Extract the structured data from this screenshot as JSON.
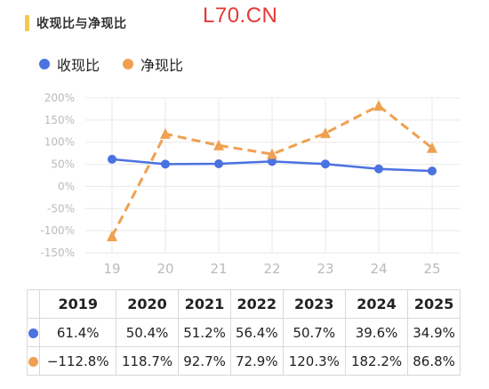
{
  "header": {
    "title": "收现比与净现比",
    "watermark": "L70.CN"
  },
  "colors": {
    "title_bar": "#f2c94c",
    "series_1": "#4a72e0",
    "series_2": "#f0a050",
    "grid": "#e8e8e8",
    "axis_text": "#bbbbbb",
    "watermark": "#e53935"
  },
  "chart_data": {
    "type": "line",
    "x": [
      "19",
      "20",
      "21",
      "22",
      "23",
      "24",
      "25"
    ],
    "y_ticks": [
      "200%",
      "150%",
      "100%",
      "50%",
      "0%",
      "-50%",
      "-100%",
      "-150%"
    ],
    "ylim": [
      -150,
      200
    ],
    "grid": true,
    "legend_position": "top-left",
    "series": [
      {
        "name": "收现比",
        "marker": "circle",
        "line_style": "solid",
        "color": "#4a72e0",
        "values": [
          61.4,
          50.4,
          51.2,
          56.4,
          50.7,
          39.6,
          34.9
        ]
      },
      {
        "name": "净现比",
        "marker": "triangle",
        "line_style": "dashed",
        "color": "#f0a050",
        "values": [
          -112.8,
          118.7,
          92.7,
          72.9,
          120.3,
          182.2,
          86.8
        ]
      }
    ]
  },
  "table": {
    "years": [
      "2019",
      "2020",
      "2021",
      "2022",
      "2023",
      "2024",
      "2025"
    ],
    "rows": [
      {
        "color": "#4a72e0",
        "cells": [
          "61.4%",
          "50.4%",
          "51.2%",
          "56.4%",
          "50.7%",
          "39.6%",
          "34.9%"
        ]
      },
      {
        "color": "#f0a050",
        "cells": [
          "−112.8%",
          "118.7%",
          "92.7%",
          "72.9%",
          "120.3%",
          "182.2%",
          "86.8%"
        ]
      }
    ]
  }
}
